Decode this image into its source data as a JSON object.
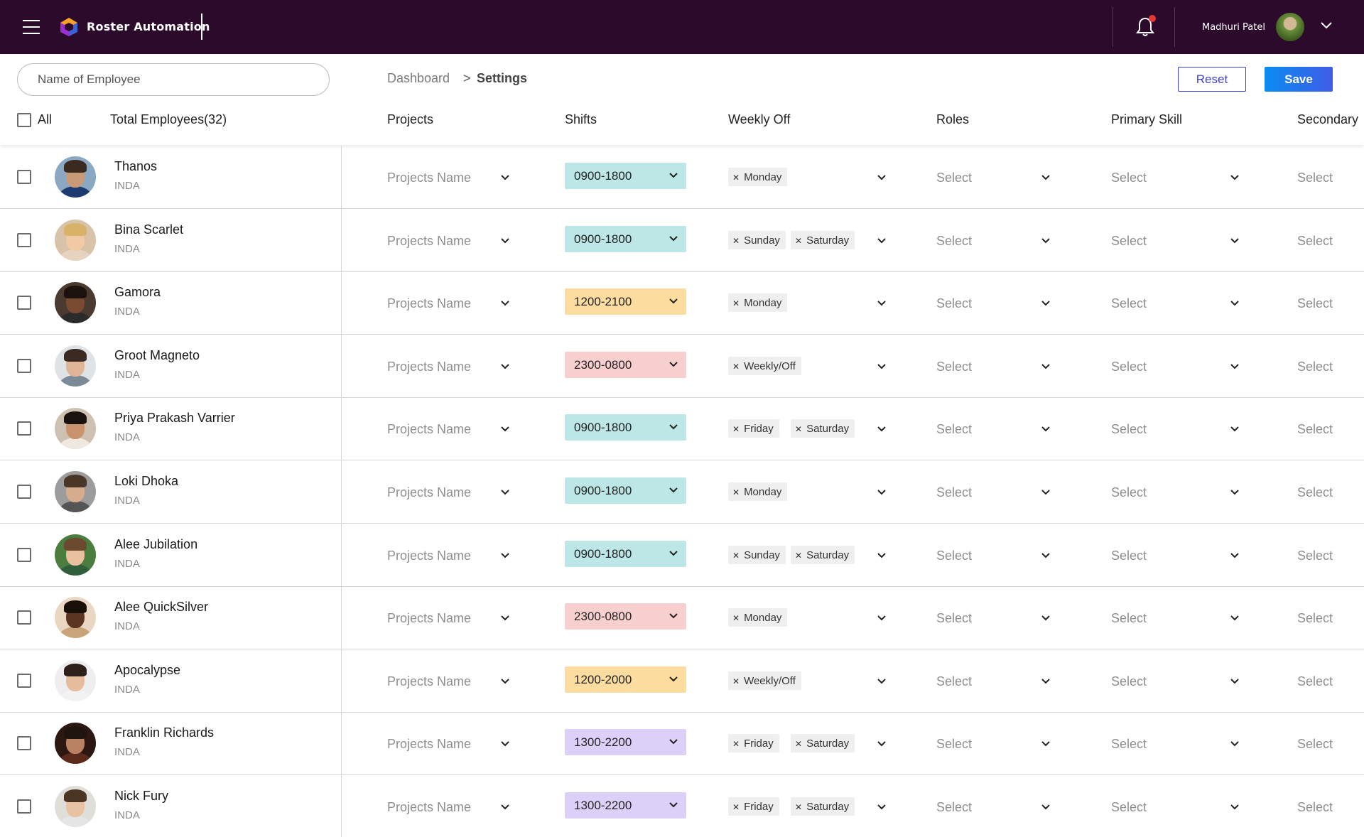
{
  "header": {
    "app_title": "Roster Automation",
    "user_name": "Madhuri Patel"
  },
  "search": {
    "placeholder": "Name of Employee"
  },
  "breadcrumb": {
    "root": "Dashboard",
    "separator": ">",
    "current": "Settings"
  },
  "actions": {
    "reset": "Reset",
    "save": "Save"
  },
  "columns": {
    "all": "All",
    "total": "Total Employees(32)",
    "projects": "Projects",
    "shifts": "Shifts",
    "weekly_off": "Weekly Off",
    "roles": "Roles",
    "primary_skill": "Primary Skill",
    "secondary": "Secondary"
  },
  "colors": {
    "topbar": "#2c0a2b",
    "shift_teal": "#bde6e6",
    "shift_orange": "#fddc9f",
    "shift_pink": "#f8cfcf",
    "shift_purple": "#ddd0f8",
    "accent": "#3b3fd8"
  },
  "rows": [
    {
      "name": "Thanos",
      "country": "INDA",
      "project": "Projects Name",
      "shift": "0900-1800",
      "shift_color": "teal",
      "weekly_off": [
        "Monday"
      ],
      "role": "Select",
      "primary": "Select",
      "secondary": "Select"
    },
    {
      "name": "Bina Scarlet",
      "country": "INDA",
      "project": "Projects Name",
      "shift": "0900-1800",
      "shift_color": "teal",
      "weekly_off": [
        "Sunday",
        "Saturday"
      ],
      "role": "Select",
      "primary": "Select",
      "secondary": "Select"
    },
    {
      "name": "Gamora",
      "country": "INDA",
      "project": "Projects Name",
      "shift": "1200-2100",
      "shift_color": "orange",
      "weekly_off": [
        "Monday"
      ],
      "role": "Select",
      "primary": "Select",
      "secondary": "Select"
    },
    {
      "name": "Groot Magneto",
      "country": "INDA",
      "project": "Projects Name",
      "shift": "2300-0800",
      "shift_color": "pink",
      "weekly_off": [
        "Weekly/Off"
      ],
      "role": "Select",
      "primary": "Select",
      "secondary": "Select"
    },
    {
      "name": "Priya Prakash Varrier",
      "country": "INDA",
      "project": "Projects Name",
      "shift": "0900-1800",
      "shift_color": "teal",
      "weekly_off": [
        "Friday",
        "Saturday"
      ],
      "role": "Select",
      "primary": "Select",
      "secondary": "Select"
    },
    {
      "name": "Loki Dhoka",
      "country": "INDA",
      "project": "Projects Name",
      "shift": "0900-1800",
      "shift_color": "teal",
      "weekly_off": [
        "Monday"
      ],
      "role": "Select",
      "primary": "Select",
      "secondary": "Select"
    },
    {
      "name": "Alee Jubilation",
      "country": "INDA",
      "project": "Projects Name",
      "shift": "0900-1800",
      "shift_color": "teal",
      "weekly_off": [
        "Sunday",
        "Saturday"
      ],
      "role": "Select",
      "primary": "Select",
      "secondary": "Select"
    },
    {
      "name": "Alee QuickSilver",
      "country": "INDA",
      "project": "Projects Name",
      "shift": "2300-0800",
      "shift_color": "pink",
      "weekly_off": [
        "Monday"
      ],
      "role": "Select",
      "primary": "Select",
      "secondary": "Select"
    },
    {
      "name": "Apocalypse",
      "country": "INDA",
      "project": "Projects Name",
      "shift": "1200-2000",
      "shift_color": "orange",
      "weekly_off": [
        "Weekly/Off"
      ],
      "role": "Select",
      "primary": "Select",
      "secondary": "Select"
    },
    {
      "name": "Franklin Richards",
      "country": "INDA",
      "project": "Projects Name",
      "shift": "1300-2200",
      "shift_color": "purple",
      "weekly_off": [
        "Friday",
        "Saturday"
      ],
      "role": "Select",
      "primary": "Select",
      "secondary": "Select"
    },
    {
      "name": "Nick Fury",
      "country": "INDA",
      "project": "Projects Name",
      "shift": "1300-2200",
      "shift_color": "purple",
      "weekly_off": [
        "Friday",
        "Saturday"
      ],
      "role": "Select",
      "primary": "Select",
      "secondary": "Select"
    }
  ]
}
